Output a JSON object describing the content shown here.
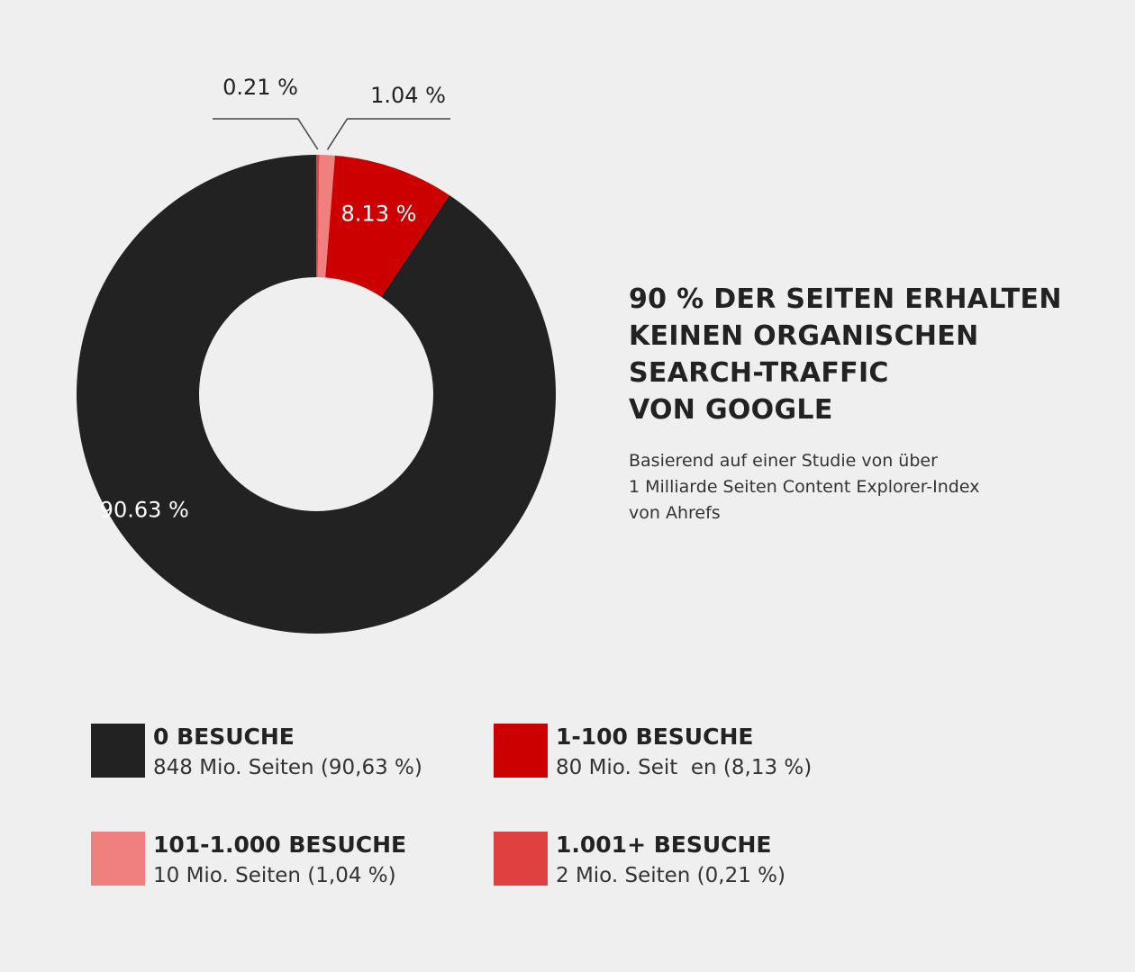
{
  "chart_data": {
    "type": "pie",
    "variant": "donut",
    "categories": [
      "0 BESUCHE",
      "1-100 BESUCHE",
      "101-1.000 BESUCHE",
      "1.001+ BESUCHE"
    ],
    "values": [
      90.63,
      8.13,
      1.04,
      0.21
    ],
    "data_labels": [
      "90.63 %",
      "8.13 %",
      "1.04 %",
      "0.21 %"
    ],
    "colors": [
      "#222222",
      "#cc0000",
      "#f08080",
      "#e04040"
    ],
    "label_colors": [
      "#ffffff",
      "#ffffff",
      "#222222",
      "#222222"
    ],
    "legend_placement": "bottom"
  },
  "heading": {
    "lines": [
      "90 % DER SEITEN ERHALTEN",
      "KEINEN ORGANISCHEN",
      "SEARCH-TRAFFIC",
      "VON GOOGLE"
    ]
  },
  "subtitle": {
    "lines": [
      "Basierend auf einer Studie von über",
      "1 Milliarde Seiten Content Explorer-Index",
      "von Ahrefs"
    ]
  },
  "legend": [
    {
      "title": "0 BESUCHE",
      "detail": "848 Mio. Seiten (90,63 %)",
      "color": "#222222"
    },
    {
      "title": "1-100 BESUCHE",
      "detail": "80 Mio. Seit  en (8,13 %)",
      "color": "#cc0000"
    },
    {
      "title": "101-1.000 BESUCHE",
      "detail": "10 Mio. Seiten (1,04 %)",
      "color": "#f08080"
    },
    {
      "title": "1.001+ BESUCHE",
      "detail": "2 Mio. Seiten (0,21 %)",
      "color": "#e04040"
    }
  ]
}
